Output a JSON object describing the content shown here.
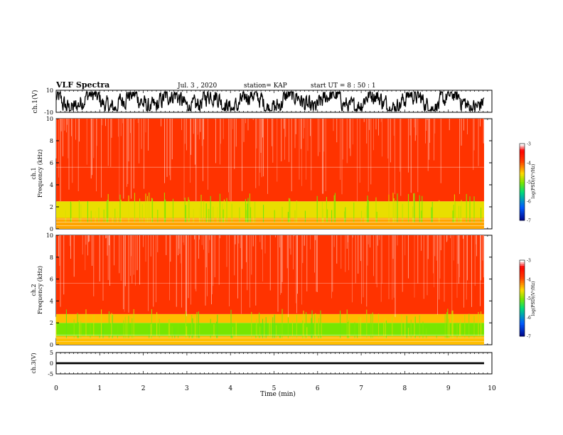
{
  "header": {
    "title": "VLF Spectra",
    "date": "Jul. 3 , 2020",
    "station": "station= KAP",
    "start": "start UT = 8 : 50 : 1"
  },
  "chart_data": [
    {
      "type": "line",
      "panel": "ch1-waveform",
      "ylabel": "ch.1(V)",
      "ylim": [
        -10,
        10
      ],
      "yticks": [
        "10",
        "-10"
      ],
      "xlim": [
        0,
        10
      ],
      "trace_xmax": 9.82,
      "description_level": "dense noisy voltage trace spanning about -8 to 8 V"
    },
    {
      "type": "heatmap",
      "panel": "ch1-spectrogram",
      "ylabel": "ch.1 Frequency (kHz)",
      "ylim": [
        0,
        10
      ],
      "yticks": [
        "0",
        "2",
        "4",
        "6",
        "8",
        "10"
      ],
      "xlim": [
        0,
        10
      ],
      "trace_xmax": 9.82,
      "colorbar": {
        "label": "log(PSD)(V²/Hz)",
        "range": [
          -7,
          -3
        ],
        "ticks": [
          "-3",
          "-4",
          "-5",
          "-6",
          "-7"
        ]
      },
      "bands": [
        {
          "from_khz": 0,
          "to_khz": 1.0,
          "level": -4.3
        },
        {
          "from_khz": 1.0,
          "to_khz": 2.5,
          "level": -4.6
        },
        {
          "from_khz": 2.5,
          "to_khz": 10,
          "level": -3.8
        }
      ]
    },
    {
      "type": "heatmap",
      "panel": "ch2-spectrogram",
      "ylabel": "ch.2 Frequency (kHz)",
      "ylim": [
        0,
        10
      ],
      "yticks": [
        "0",
        "2",
        "4",
        "6",
        "8",
        "10"
      ],
      "xlim": [
        0,
        10
      ],
      "trace_xmax": 9.82,
      "colorbar": {
        "label": "log(PSD)(V²/Hz)",
        "range": [
          -7,
          -3
        ],
        "ticks": [
          "-3",
          "-4",
          "-5",
          "-6",
          "-7"
        ]
      },
      "bands": [
        {
          "from_khz": 0,
          "to_khz": 0.8,
          "level": -4.4
        },
        {
          "from_khz": 0.8,
          "to_khz": 2.0,
          "level": -5.0
        },
        {
          "from_khz": 2.0,
          "to_khz": 2.8,
          "level": -4.4
        },
        {
          "from_khz": 2.8,
          "to_khz": 10,
          "level": -3.8
        }
      ]
    },
    {
      "type": "line",
      "panel": "ch3-waveform",
      "ylabel": "ch.3(V)",
      "ylim": [
        -5,
        5
      ],
      "yticks": [
        "5",
        "0",
        "-5"
      ],
      "xlim": [
        0,
        10
      ],
      "trace_xmax": 9.82,
      "trace_center": 0,
      "trace_halfwidth": 0.45,
      "xlabel": "Time (min)",
      "xticks": [
        "0",
        "1",
        "2",
        "3",
        "4",
        "5",
        "6",
        "7",
        "8",
        "9",
        "10"
      ]
    }
  ],
  "colors": {
    "trace": "#000000",
    "spectrogram_low": "#ffffff",
    "spectrogram_high": "#ff0000",
    "band_mid": "#ffcc00",
    "band_low": "#55dd22"
  }
}
